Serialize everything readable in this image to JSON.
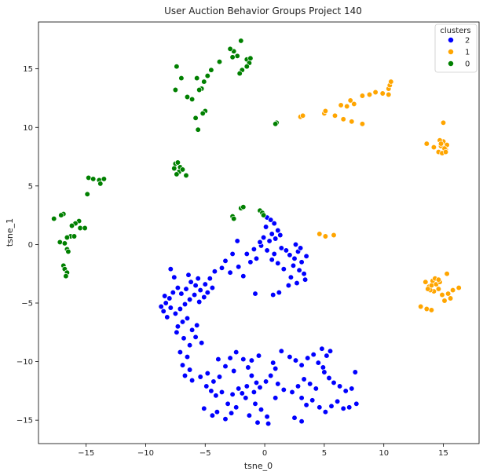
{
  "chart_data": {
    "type": "scatter",
    "title": "User Auction Behavior Groups Project 140",
    "xlabel": "tsne_0",
    "ylabel": "tsne_1",
    "xlim": [
      -19,
      18
    ],
    "ylim": [
      -17,
      19
    ],
    "xticks": [
      -15,
      -10,
      -5,
      0,
      5,
      10,
      15
    ],
    "yticks": [
      -15,
      -10,
      -5,
      0,
      5,
      10,
      15
    ],
    "grid": false,
    "legend": {
      "title": "clusters",
      "placement": "top-right",
      "entries": [
        {
          "label": "2",
          "color": "#0000ff"
        },
        {
          "label": "1",
          "color": "#ffa500"
        },
        {
          "label": "0",
          "color": "#008000"
        }
      ]
    },
    "series": [
      {
        "name": "2",
        "color": "#0000ff",
        "points": [
          [
            0.2,
            2.3
          ],
          [
            0.5,
            2.1
          ],
          [
            0.1,
            1.5
          ],
          [
            0.8,
            1.8
          ],
          [
            1.1,
            1.2
          ],
          [
            1.3,
            0.8
          ],
          [
            0.6,
            0.9
          ],
          [
            -0.1,
            0.6
          ],
          [
            0.4,
            0.3
          ],
          [
            0.9,
            0.5
          ],
          [
            -0.3,
            -0.1
          ],
          [
            0.2,
            -0.5
          ],
          [
            0.8,
            -0.8
          ],
          [
            1.4,
            -0.3
          ],
          [
            1.8,
            -0.5
          ],
          [
            2.1,
            -0.9
          ],
          [
            2.5,
            -1.2
          ],
          [
            2.8,
            -0.6
          ],
          [
            3.1,
            -1.5
          ],
          [
            2.4,
            -1.8
          ],
          [
            2.9,
            -2.2
          ],
          [
            3.3,
            -2.5
          ],
          [
            2.2,
            -2.8
          ],
          [
            1.6,
            -2.1
          ],
          [
            1.1,
            -1.6
          ],
          [
            0.6,
            -1.3
          ],
          [
            3.5,
            -1.0
          ],
          [
            3.0,
            -0.3
          ],
          [
            2.6,
            0.0
          ],
          [
            3.4,
            -3.0
          ],
          [
            2.0,
            -3.5
          ],
          [
            2.7,
            -3.3
          ],
          [
            1.2,
            -4.1
          ],
          [
            0.7,
            -4.3
          ],
          [
            -0.8,
            -4.2
          ],
          [
            -1.2,
            -1.5
          ],
          [
            -1.5,
            -0.8
          ],
          [
            -0.9,
            -0.4
          ],
          [
            -0.4,
            0.2
          ],
          [
            -0.7,
            -1.2
          ],
          [
            -2.3,
            0.3
          ],
          [
            -2.7,
            -0.8
          ],
          [
            -3.3,
            -1.4
          ],
          [
            -3.6,
            -2.0
          ],
          [
            -2.9,
            -2.4
          ],
          [
            -2.2,
            -1.9
          ],
          [
            -1.8,
            -2.7
          ],
          [
            -4.2,
            -2.3
          ],
          [
            -4.6,
            -2.9
          ],
          [
            -5.0,
            -3.4
          ],
          [
            -5.4,
            -3.9
          ],
          [
            -5.8,
            -3.5
          ],
          [
            -6.2,
            -3.2
          ],
          [
            -6.6,
            -3.8
          ],
          [
            -7.0,
            -4.2
          ],
          [
            -7.3,
            -3.7
          ],
          [
            -7.7,
            -4.1
          ],
          [
            -8.0,
            -4.6
          ],
          [
            -8.3,
            -5.0
          ],
          [
            -7.9,
            -5.4
          ],
          [
            -8.5,
            -5.7
          ],
          [
            -8.2,
            -6.2
          ],
          [
            -7.5,
            -5.9
          ],
          [
            -7.1,
            -5.5
          ],
          [
            -6.7,
            -5.1
          ],
          [
            -6.3,
            -4.7
          ],
          [
            -5.9,
            -4.3
          ],
          [
            -5.5,
            -4.9
          ],
          [
            -5.1,
            -4.5
          ],
          [
            -4.8,
            -4.1
          ],
          [
            -4.4,
            -3.7
          ],
          [
            -6.5,
            -6.3
          ],
          [
            -6.9,
            -6.6
          ],
          [
            -7.3,
            -7.0
          ],
          [
            -6.1,
            -7.3
          ],
          [
            -5.7,
            -6.9
          ],
          [
            -7.6,
            -2.8
          ],
          [
            -7.9,
            -2.1
          ],
          [
            -6.4,
            -2.6
          ],
          [
            -5.6,
            -2.9
          ],
          [
            -8.7,
            -5.3
          ],
          [
            -8.4,
            -4.4
          ],
          [
            -7.4,
            -7.5
          ],
          [
            -6.8,
            -8.0
          ],
          [
            -6.3,
            -8.6
          ],
          [
            -5.8,
            -7.9
          ],
          [
            -5.3,
            -8.4
          ],
          [
            -7.1,
            -9.2
          ],
          [
            -6.5,
            -9.6
          ],
          [
            -6.9,
            -10.3
          ],
          [
            -6.3,
            -10.7
          ],
          [
            -6.7,
            -11.2
          ],
          [
            -6.1,
            -11.6
          ],
          [
            -5.4,
            -11.3
          ],
          [
            -4.8,
            -11.0
          ],
          [
            -4.3,
            -11.7
          ],
          [
            -3.8,
            -11.3
          ],
          [
            -4.9,
            -12.1
          ],
          [
            -4.5,
            -12.5
          ],
          [
            -4.1,
            -12.9
          ],
          [
            -3.6,
            -12.6
          ],
          [
            -5.1,
            -14.0
          ],
          [
            -4.4,
            -14.6
          ],
          [
            -4.0,
            -14.3
          ],
          [
            -3.3,
            -14.9
          ],
          [
            -2.8,
            -14.4
          ],
          [
            -2.4,
            -13.9
          ],
          [
            -3.1,
            -13.6
          ],
          [
            -2.7,
            -12.8
          ],
          [
            -2.2,
            -12.3
          ],
          [
            -3.3,
            -10.4
          ],
          [
            -2.9,
            -9.7
          ],
          [
            -2.4,
            -9.2
          ],
          [
            -1.8,
            -9.8
          ],
          [
            -1.4,
            -10.5
          ],
          [
            -1.1,
            -11.2
          ],
          [
            -0.7,
            -11.8
          ],
          [
            -1.5,
            -12.1
          ],
          [
            -0.9,
            -12.6
          ],
          [
            -0.4,
            -12.2
          ],
          [
            0.1,
            -11.7
          ],
          [
            0.5,
            -11.2
          ],
          [
            0.9,
            -10.6
          ],
          [
            0.7,
            -10.1
          ],
          [
            -0.5,
            -9.5
          ],
          [
            -1.1,
            -9.9
          ],
          [
            -0.8,
            -13.6
          ],
          [
            -0.3,
            -14.1
          ],
          [
            0.2,
            -14.7
          ],
          [
            -0.6,
            -15.2
          ],
          [
            0.3,
            -15.3
          ],
          [
            -1.3,
            -14.6
          ],
          [
            -1.6,
            -13.1
          ],
          [
            -1.9,
            -12.7
          ],
          [
            2.1,
            -9.6
          ],
          [
            2.6,
            -9.9
          ],
          [
            3.1,
            -10.3
          ],
          [
            3.6,
            -9.7
          ],
          [
            4.1,
            -9.4
          ],
          [
            4.5,
            -10.1
          ],
          [
            4.9,
            -10.5
          ],
          [
            5.2,
            -9.5
          ],
          [
            4.8,
            -8.9
          ],
          [
            5.5,
            -9.1
          ],
          [
            5.0,
            -10.9
          ],
          [
            5.4,
            -11.4
          ],
          [
            5.8,
            -11.8
          ],
          [
            6.3,
            -12.1
          ],
          [
            6.8,
            -12.5
          ],
          [
            7.3,
            -12.3
          ],
          [
            7.6,
            -10.9
          ],
          [
            3.3,
            -11.5
          ],
          [
            3.8,
            -11.9
          ],
          [
            4.3,
            -12.3
          ],
          [
            2.8,
            -12.1
          ],
          [
            2.3,
            -12.6
          ],
          [
            3.1,
            -13.1
          ],
          [
            3.5,
            -13.7
          ],
          [
            4.0,
            -13.3
          ],
          [
            4.6,
            -13.9
          ],
          [
            5.1,
            -14.3
          ],
          [
            5.6,
            -13.8
          ],
          [
            6.1,
            -13.4
          ],
          [
            6.6,
            -14.0
          ],
          [
            7.1,
            -13.9
          ],
          [
            7.7,
            -13.6
          ],
          [
            2.5,
            -14.8
          ],
          [
            3.1,
            -15.1
          ],
          [
            1.1,
            -11.9
          ],
          [
            1.6,
            -12.4
          ],
          [
            0.9,
            -13.1
          ],
          [
            1.4,
            -9.1
          ],
          [
            -2.6,
            -10.8
          ],
          [
            -3.9,
            -9.8
          ]
        ]
      },
      {
        "name": "1",
        "color": "#ffa500",
        "points": [
          [
            3.0,
            10.9
          ],
          [
            3.2,
            11.0
          ],
          [
            5.0,
            11.2
          ],
          [
            5.1,
            11.4
          ],
          [
            5.9,
            11.0
          ],
          [
            6.4,
            11.9
          ],
          [
            6.9,
            11.8
          ],
          [
            7.2,
            12.3
          ],
          [
            7.5,
            12.0
          ],
          [
            8.2,
            12.7
          ],
          [
            8.8,
            12.8
          ],
          [
            9.3,
            13.0
          ],
          [
            9.9,
            12.9
          ],
          [
            10.4,
            13.3
          ],
          [
            10.5,
            13.6
          ],
          [
            10.6,
            13.9
          ],
          [
            10.4,
            12.8
          ],
          [
            8.2,
            10.3
          ],
          [
            7.3,
            10.5
          ],
          [
            6.6,
            10.7
          ],
          [
            13.6,
            8.6
          ],
          [
            14.2,
            8.3
          ],
          [
            14.6,
            7.9
          ],
          [
            14.8,
            8.4
          ],
          [
            15.0,
            8.8
          ],
          [
            15.2,
            8.1
          ],
          [
            14.9,
            7.8
          ],
          [
            15.3,
            8.5
          ],
          [
            14.7,
            8.9
          ],
          [
            15.1,
            8.2
          ],
          [
            15.2,
            7.9
          ],
          [
            14.8,
            8.6
          ],
          [
            15.0,
            10.4
          ],
          [
            4.6,
            0.9
          ],
          [
            5.1,
            0.7
          ],
          [
            5.8,
            0.8
          ],
          [
            13.5,
            -3.2
          ],
          [
            13.8,
            -3.6
          ],
          [
            14.1,
            -3.1
          ],
          [
            14.4,
            -3.4
          ],
          [
            14.6,
            -3.8
          ],
          [
            14.9,
            -4.3
          ],
          [
            14.2,
            -4.0
          ],
          [
            13.9,
            -3.9
          ],
          [
            14.7,
            -3.2
          ],
          [
            14.3,
            -2.9
          ],
          [
            15.1,
            -4.8
          ],
          [
            15.4,
            -4.2
          ],
          [
            15.6,
            -4.6
          ],
          [
            15.3,
            -2.5
          ],
          [
            16.3,
            -3.7
          ],
          [
            15.8,
            -3.9
          ],
          [
            13.1,
            -5.3
          ],
          [
            13.6,
            -5.5
          ],
          [
            14.0,
            -5.6
          ],
          [
            14.6,
            -3.0
          ],
          [
            14.0,
            -3.5
          ],
          [
            13.7,
            -3.8
          ]
        ]
      },
      {
        "name": "0",
        "color": "#008000",
        "points": [
          [
            -2.0,
            17.4
          ],
          [
            -2.3,
            16.1
          ],
          [
            -2.6,
            16.5
          ],
          [
            -2.9,
            16.7
          ],
          [
            -2.7,
            16.0
          ],
          [
            -1.5,
            15.8
          ],
          [
            -1.3,
            15.5
          ],
          [
            -1.5,
            15.2
          ],
          [
            -1.9,
            14.9
          ],
          [
            -2.1,
            14.6
          ],
          [
            -3.8,
            15.6
          ],
          [
            -4.5,
            14.9
          ],
          [
            -4.8,
            14.4
          ],
          [
            -5.1,
            13.9
          ],
          [
            -5.3,
            13.3
          ],
          [
            -5.5,
            13.2
          ],
          [
            -5.7,
            14.2
          ],
          [
            -6.1,
            12.4
          ],
          [
            -6.5,
            12.6
          ],
          [
            -7.0,
            14.2
          ],
          [
            -7.4,
            15.2
          ],
          [
            -7.5,
            13.2
          ],
          [
            -5.0,
            11.4
          ],
          [
            -5.2,
            11.2
          ],
          [
            -5.8,
            10.8
          ],
          [
            -5.6,
            9.8
          ],
          [
            -1.2,
            15.9
          ],
          [
            -7.5,
            6.9
          ],
          [
            -7.3,
            7.0
          ],
          [
            -7.1,
            6.6
          ],
          [
            -7.6,
            6.5
          ],
          [
            -7.2,
            6.2
          ],
          [
            -6.9,
            6.4
          ],
          [
            -7.4,
            6.0
          ],
          [
            -6.6,
            5.9
          ],
          [
            -14.8,
            5.7
          ],
          [
            -14.4,
            5.6
          ],
          [
            -13.9,
            5.5
          ],
          [
            -13.5,
            5.6
          ],
          [
            -13.8,
            5.2
          ],
          [
            -14.9,
            4.3
          ],
          [
            -16.9,
            2.6
          ],
          [
            -17.1,
            2.5
          ],
          [
            -17.7,
            2.2
          ],
          [
            -15.6,
            2.0
          ],
          [
            -15.9,
            1.8
          ],
          [
            -16.2,
            1.6
          ],
          [
            -15.5,
            1.4
          ],
          [
            -15.1,
            1.4
          ],
          [
            -16.3,
            0.7
          ],
          [
            -16.0,
            0.7
          ],
          [
            -16.6,
            0.6
          ],
          [
            -17.2,
            0.2
          ],
          [
            -16.8,
            0.1
          ],
          [
            -16.6,
            -0.4
          ],
          [
            -16.5,
            -0.6
          ],
          [
            -16.9,
            -1.8
          ],
          [
            -16.8,
            -2.1
          ],
          [
            -16.6,
            -2.4
          ],
          [
            -16.7,
            -2.7
          ],
          [
            -2.7,
            2.4
          ],
          [
            -2.6,
            2.2
          ],
          [
            -2.0,
            3.1
          ],
          [
            -1.8,
            3.2
          ],
          [
            -0.4,
            2.9
          ],
          [
            -0.2,
            2.7
          ],
          [
            -0.1,
            2.5
          ],
          [
            1.0,
            10.4
          ],
          [
            0.9,
            10.3
          ]
        ]
      }
    ]
  }
}
